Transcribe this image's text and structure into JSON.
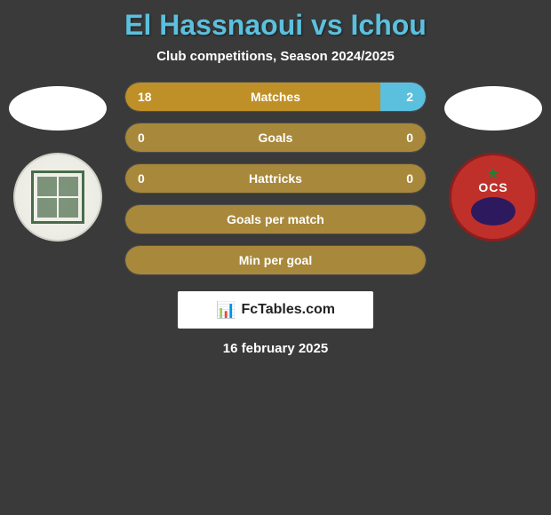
{
  "title": "El Hassnaoui vs Ichou",
  "subtitle": "Club competitions, Season 2024/2025",
  "left_player": {
    "name": "El Hassnaoui"
  },
  "right_player": {
    "name": "Ichou"
  },
  "colors": {
    "left": "#c09028",
    "right": "#5bc0de",
    "neutral": "#a8883a",
    "bg_bar": "rgba(0,0,0,0.2)"
  },
  "bars": [
    {
      "label": "Matches",
      "left_val": "18",
      "right_val": "2",
      "left_pct": 85,
      "right_pct": 15,
      "left_fill": "#c09028",
      "right_fill": "#5bc0de"
    },
    {
      "label": "Goals",
      "left_val": "0",
      "right_val": "0",
      "left_pct": 0,
      "right_pct": 0,
      "left_fill": "#c09028",
      "right_fill": "#5bc0de",
      "neutral": true
    },
    {
      "label": "Hattricks",
      "left_val": "0",
      "right_val": "0",
      "left_pct": 0,
      "right_pct": 0,
      "left_fill": "#c09028",
      "right_fill": "#5bc0de",
      "neutral": true
    },
    {
      "label": "Goals per match",
      "left_val": "",
      "right_val": "",
      "left_pct": 0,
      "right_pct": 0,
      "left_fill": "#c09028",
      "right_fill": "#5bc0de",
      "neutral": true
    },
    {
      "label": "Min per goal",
      "left_val": "",
      "right_val": "",
      "left_pct": 0,
      "right_pct": 0,
      "left_fill": "#c09028",
      "right_fill": "#5bc0de",
      "neutral": true
    }
  ],
  "watermark": "FcTables.com",
  "date": "16 february 2025"
}
